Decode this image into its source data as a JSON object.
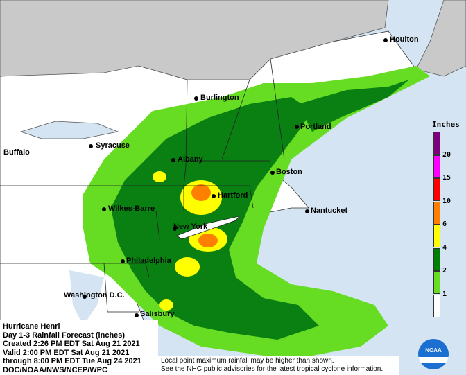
{
  "title_block": {
    "lines": [
      "Hurricane Henri",
      "Day 1-3 Rainfall Forecast (inches)",
      "Created 2:26 PM EDT Sat Aug 21 2021",
      "Valid 2:00 PM EDT Sat Aug 21 2021",
      "through 8:00 PM EDT Tue Aug 24 2021",
      "DOC/NOAA/NWS/NCEP/WPC"
    ]
  },
  "note": {
    "line1": "Local point maximum rainfall may be higher than shown.",
    "line2": "See the NHC public advisories for the latest tropical cyclone information."
  },
  "legend": {
    "title": "Inches",
    "bins": [
      {
        "color": "#7f007f",
        "label": ""
      },
      {
        "color": "#ff00ff",
        "label": "20"
      },
      {
        "color": "#ff0000",
        "label": "15"
      },
      {
        "color": "#ff8000",
        "label": "10"
      },
      {
        "color": "#ffff00",
        "label": "6"
      },
      {
        "color": "#008000",
        "label": "4"
      },
      {
        "color": "#66dd22",
        "label": "2"
      },
      {
        "color": "#ffffff",
        "label": "1"
      }
    ]
  },
  "cities": [
    {
      "name": "Houlton",
      "dot": true
    },
    {
      "name": "Burlington",
      "dot": true
    },
    {
      "name": "Portland",
      "dot": true
    },
    {
      "name": "Buffalo",
      "dot": false
    },
    {
      "name": "Syracuse",
      "dot": true
    },
    {
      "name": "Albany",
      "dot": true
    },
    {
      "name": "Boston",
      "dot": true
    },
    {
      "name": "Hartford",
      "dot": true
    },
    {
      "name": "Wilkes-Barre",
      "dot": true
    },
    {
      "name": "Nantucket",
      "dot": true
    },
    {
      "name": "New York",
      "dot": true
    },
    {
      "name": "Philadelphia",
      "dot": true
    },
    {
      "name": "Washington D.C.",
      "dot": true
    },
    {
      "name": "Salisbury",
      "dot": true
    }
  ],
  "logo": {
    "text": "NOAA"
  },
  "colors": {
    "ocean": "#d4e4f2",
    "land": "#ffffff",
    "canada": "#c9c9c9",
    "light_green": "#66dd22",
    "dark_green": "#0a7f12"
  }
}
